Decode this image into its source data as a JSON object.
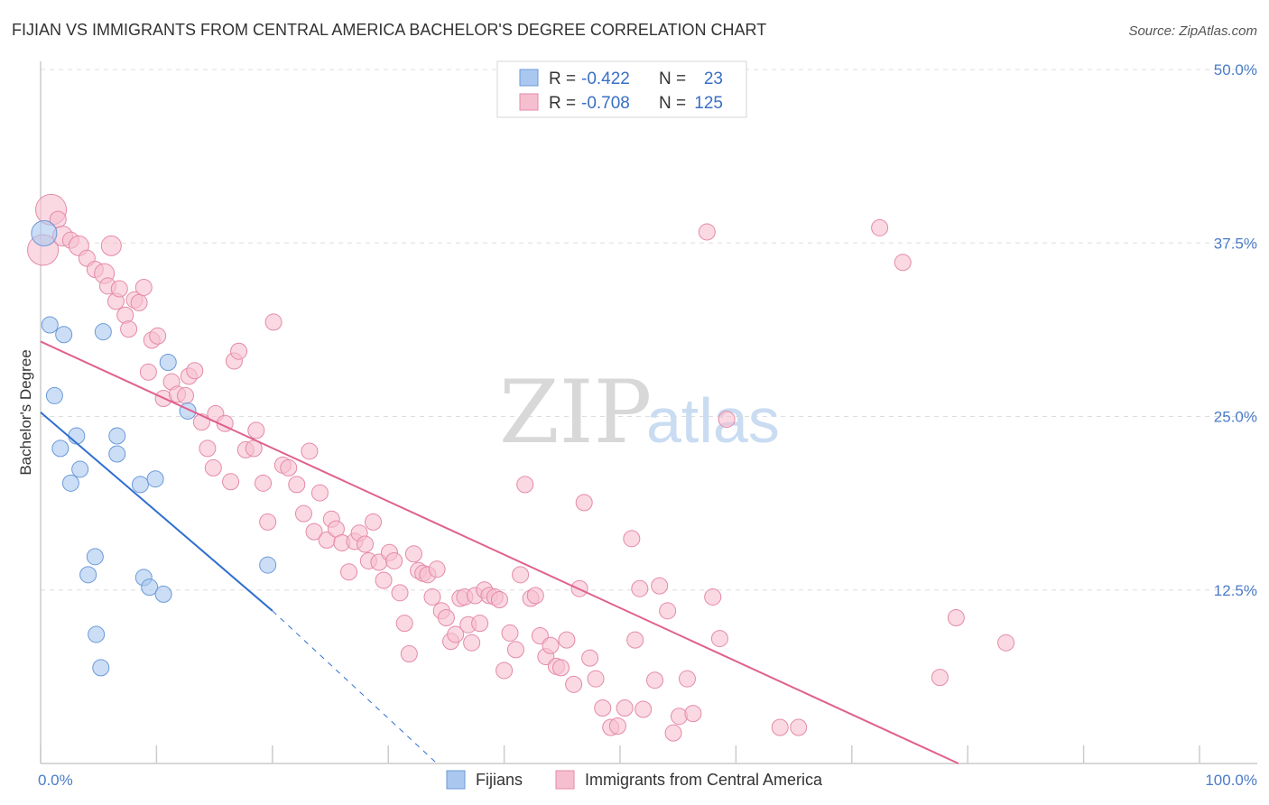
{
  "title": "FIJIAN VS IMMIGRANTS FROM CENTRAL AMERICA BACHELOR'S DEGREE CORRELATION CHART",
  "source": "Source: ZipAtlas.com",
  "watermark": {
    "zip": "ZIP",
    "atlas": "atlas"
  },
  "colors": {
    "blue_fill": "#aac8ef",
    "blue_stroke": "#6b9ad8",
    "blue_line": "#2f6fd0",
    "pink_fill": "#f6bfd0",
    "pink_stroke": "#e58aa8",
    "pink_line": "#e0608e",
    "grid": "#dddddd",
    "axis_text": "#4a7cc8"
  },
  "legend": {
    "rows": [
      {
        "r_label": "R =",
        "r_value": "-0.422",
        "n_label": "N =",
        "n_value": "23"
      },
      {
        "r_label": "R =",
        "r_value": "-0.708",
        "n_label": "N =",
        "n_value": "125"
      }
    ]
  },
  "bottom_legend": {
    "series1": "Fijians",
    "series2": "Immigrants from Central America"
  },
  "chart_data": {
    "type": "scatter",
    "title": "FIJIAN VS IMMIGRANTS FROM CENTRAL AMERICA BACHELOR'S DEGREE CORRELATION CHART",
    "ylabel": "Bachelor's Degree",
    "xlabel": "",
    "xlim": [
      0,
      100
    ],
    "ylim": [
      0,
      50
    ],
    "x_tick_labels": [
      {
        "value": 0,
        "label": "0.0%"
      },
      {
        "value": 100,
        "label": "100.0%"
      }
    ],
    "y_tick_labels": [
      {
        "value": 12.5,
        "label": "12.5%"
      },
      {
        "value": 25,
        "label": "25.0%"
      },
      {
        "value": 37.5,
        "label": "37.5%"
      },
      {
        "value": 50,
        "label": "50.0%"
      }
    ],
    "series": [
      {
        "name": "Fijians",
        "r": -0.422,
        "n": 23,
        "trend": {
          "x0": 0,
          "y0": 25.3,
          "x1": 20,
          "y1": 11.0,
          "dash_x1": 34.2,
          "dash_y1": 0.0
        },
        "points": [
          [
            0.3,
            38.2,
            14
          ],
          [
            0.8,
            31.6,
            9
          ],
          [
            1.2,
            26.5,
            9
          ],
          [
            2.0,
            30.9,
            9
          ],
          [
            1.7,
            22.7,
            9
          ],
          [
            2.6,
            20.2,
            9
          ],
          [
            3.1,
            23.6,
            9
          ],
          [
            3.4,
            21.2,
            9
          ],
          [
            4.1,
            13.6,
            9
          ],
          [
            5.4,
            31.1,
            9
          ],
          [
            4.7,
            14.9,
            9
          ],
          [
            4.8,
            9.3,
            9
          ],
          [
            5.2,
            6.9,
            9
          ],
          [
            6.6,
            22.3,
            9
          ],
          [
            6.6,
            23.6,
            9
          ],
          [
            8.6,
            20.1,
            9
          ],
          [
            8.9,
            13.4,
            9
          ],
          [
            9.4,
            12.7,
            9
          ],
          [
            9.9,
            20.5,
            9
          ],
          [
            10.6,
            12.2,
            9
          ],
          [
            11.0,
            28.9,
            9
          ],
          [
            12.7,
            25.4,
            9
          ],
          [
            19.6,
            14.3,
            9
          ]
        ]
      },
      {
        "name": "Immigrants from Central America",
        "r": -0.708,
        "n": 125,
        "trend": {
          "x0": 0,
          "y0": 30.4,
          "x1": 79.2,
          "y1": 0.0
        },
        "points": [
          [
            0.2,
            37.0,
            17
          ],
          [
            0.9,
            39.9,
            17
          ],
          [
            1.5,
            39.2,
            9
          ],
          [
            1.9,
            38.0,
            11
          ],
          [
            2.6,
            37.7,
            9
          ],
          [
            3.3,
            37.3,
            11
          ],
          [
            4.0,
            36.4,
            9
          ],
          [
            4.7,
            35.6,
            9
          ],
          [
            5.5,
            35.3,
            11
          ],
          [
            6.1,
            37.3,
            11
          ],
          [
            5.8,
            34.4,
            9
          ],
          [
            6.5,
            33.3,
            9
          ],
          [
            6.8,
            34.2,
            9
          ],
          [
            7.3,
            32.3,
            9
          ],
          [
            7.6,
            31.3,
            9
          ],
          [
            8.1,
            33.4,
            9
          ],
          [
            8.5,
            33.2,
            9
          ],
          [
            8.9,
            34.3,
            9
          ],
          [
            9.6,
            30.5,
            9
          ],
          [
            10.1,
            30.8,
            9
          ],
          [
            9.3,
            28.2,
            9
          ],
          [
            10.6,
            26.3,
            9
          ],
          [
            11.3,
            27.5,
            9
          ],
          [
            11.8,
            26.6,
            9
          ],
          [
            12.5,
            26.5,
            9
          ],
          [
            12.8,
            27.9,
            9
          ],
          [
            13.3,
            28.3,
            9
          ],
          [
            13.9,
            24.6,
            9
          ],
          [
            14.4,
            22.7,
            9
          ],
          [
            14.9,
            21.3,
            9
          ],
          [
            15.1,
            25.2,
            9
          ],
          [
            15.9,
            24.5,
            9
          ],
          [
            16.4,
            20.3,
            9
          ],
          [
            16.7,
            29.0,
            9
          ],
          [
            17.1,
            29.7,
            9
          ],
          [
            17.7,
            22.6,
            9
          ],
          [
            18.4,
            22.7,
            9
          ],
          [
            18.6,
            24.0,
            9
          ],
          [
            19.2,
            20.2,
            9
          ],
          [
            19.6,
            17.4,
            9
          ],
          [
            20.1,
            31.8,
            9
          ],
          [
            20.9,
            21.5,
            9
          ],
          [
            21.4,
            21.3,
            9
          ],
          [
            22.1,
            20.1,
            9
          ],
          [
            22.7,
            18.0,
            9
          ],
          [
            23.2,
            22.5,
            9
          ],
          [
            23.6,
            16.7,
            9
          ],
          [
            24.1,
            19.5,
            9
          ],
          [
            24.7,
            16.1,
            9
          ],
          [
            25.1,
            17.6,
            9
          ],
          [
            25.5,
            16.9,
            9
          ],
          [
            26.0,
            15.9,
            9
          ],
          [
            26.6,
            13.8,
            9
          ],
          [
            27.1,
            16.0,
            9
          ],
          [
            27.5,
            16.6,
            9
          ],
          [
            28.0,
            15.8,
            9
          ],
          [
            28.3,
            14.6,
            9
          ],
          [
            28.7,
            17.4,
            9
          ],
          [
            29.2,
            14.5,
            9
          ],
          [
            29.6,
            13.2,
            9
          ],
          [
            30.1,
            15.2,
            9
          ],
          [
            30.5,
            14.6,
            9
          ],
          [
            31.0,
            12.3,
            9
          ],
          [
            31.4,
            10.1,
            9
          ],
          [
            31.8,
            7.9,
            9
          ],
          [
            32.2,
            15.1,
            9
          ],
          [
            32.6,
            13.9,
            9
          ],
          [
            33.0,
            13.7,
            9
          ],
          [
            33.4,
            13.6,
            9
          ],
          [
            33.8,
            12.0,
            9
          ],
          [
            34.2,
            14.0,
            9
          ],
          [
            34.6,
            11.0,
            9
          ],
          [
            35.0,
            10.5,
            9
          ],
          [
            35.4,
            8.8,
            9
          ],
          [
            35.8,
            9.3,
            9
          ],
          [
            36.2,
            11.9,
            9
          ],
          [
            36.6,
            12.0,
            9
          ],
          [
            36.9,
            10.0,
            9
          ],
          [
            37.2,
            8.7,
            9
          ],
          [
            37.5,
            12.1,
            9
          ],
          [
            37.9,
            10.1,
            9
          ],
          [
            38.3,
            12.5,
            9
          ],
          [
            38.7,
            12.1,
            9
          ],
          [
            39.2,
            12.0,
            9
          ],
          [
            39.6,
            11.8,
            9
          ],
          [
            40.0,
            6.7,
            9
          ],
          [
            40.5,
            9.4,
            9
          ],
          [
            41.0,
            8.2,
            9
          ],
          [
            41.4,
            13.6,
            9
          ],
          [
            41.8,
            20.1,
            9
          ],
          [
            42.3,
            11.9,
            9
          ],
          [
            42.7,
            12.1,
            9
          ],
          [
            43.1,
            9.2,
            9
          ],
          [
            43.6,
            7.7,
            9
          ],
          [
            44.0,
            8.5,
            9
          ],
          [
            44.5,
            7.0,
            9
          ],
          [
            44.9,
            6.9,
            9
          ],
          [
            45.4,
            8.9,
            9
          ],
          [
            46.0,
            5.7,
            9
          ],
          [
            46.5,
            12.6,
            9
          ],
          [
            46.9,
            18.8,
            9
          ],
          [
            47.4,
            7.6,
            9
          ],
          [
            47.9,
            6.1,
            9
          ],
          [
            48.5,
            4.0,
            9
          ],
          [
            49.2,
            2.6,
            9
          ],
          [
            49.8,
            2.7,
            9
          ],
          [
            50.4,
            4.0,
            9
          ],
          [
            51.0,
            16.2,
            9
          ],
          [
            51.3,
            8.9,
            9
          ],
          [
            51.7,
            12.6,
            9
          ],
          [
            52.0,
            3.9,
            9
          ],
          [
            53.0,
            6.0,
            9
          ],
          [
            53.4,
            12.8,
            9
          ],
          [
            54.1,
            11.0,
            9
          ],
          [
            54.6,
            2.2,
            9
          ],
          [
            55.1,
            3.4,
            9
          ],
          [
            55.8,
            6.1,
            9
          ],
          [
            56.3,
            3.6,
            9
          ],
          [
            57.5,
            38.3,
            9
          ],
          [
            58.0,
            12.0,
            9
          ],
          [
            58.6,
            9.0,
            9
          ],
          [
            59.2,
            24.8,
            9
          ],
          [
            63.8,
            2.6,
            9
          ],
          [
            65.4,
            2.6,
            9
          ],
          [
            72.4,
            38.6,
            9
          ],
          [
            74.4,
            36.1,
            9
          ],
          [
            77.6,
            6.2,
            9
          ],
          [
            79.0,
            10.5,
            9
          ],
          [
            83.3,
            8.7,
            9
          ]
        ]
      }
    ]
  }
}
